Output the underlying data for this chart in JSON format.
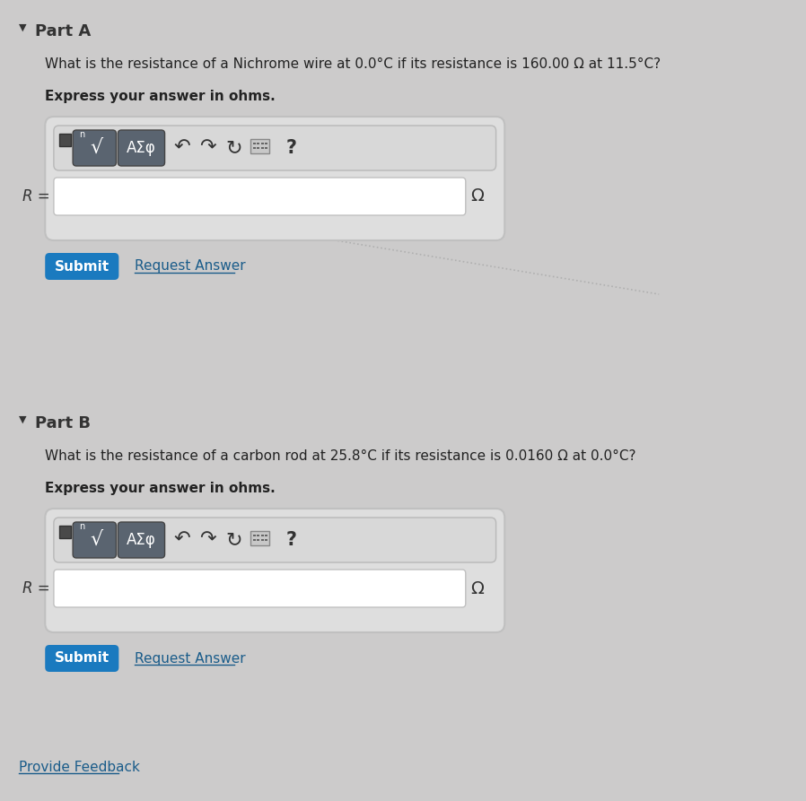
{
  "bg_color": "#cccbcb",
  "part_a_label": "Part A",
  "part_b_label": "Part B",
  "part_a_question": "What is the resistance of a Nichrome wire at 0.0°C if its resistance is 160.00 Ω at 11.5°C?",
  "part_b_question": "What is the resistance of a carbon rod at 25.8°C if its resistance is 0.0160 Ω at 0.0°C?",
  "express_answer": "Express your answer in ohms.",
  "r_equals": "R =",
  "omega": "Ω",
  "submit_text": "Submit",
  "request_answer_text": "Request Answer",
  "provide_feedback_text": "Provide Feedback",
  "toolbar_text": "AΣφ",
  "question_mark": "?",
  "submit_bg": "#1a7abf",
  "submit_fg": "#ffffff",
  "toolbar_bg": "#5a6470",
  "outer_box_bg": "#dedede",
  "outer_box_border": "#c0c0c0",
  "input_box_bg": "#ffffff",
  "dotted_line_color": "#b0b0b0",
  "link_color": "#1a5c8a",
  "text_color": "#222222",
  "label_color": "#333333"
}
